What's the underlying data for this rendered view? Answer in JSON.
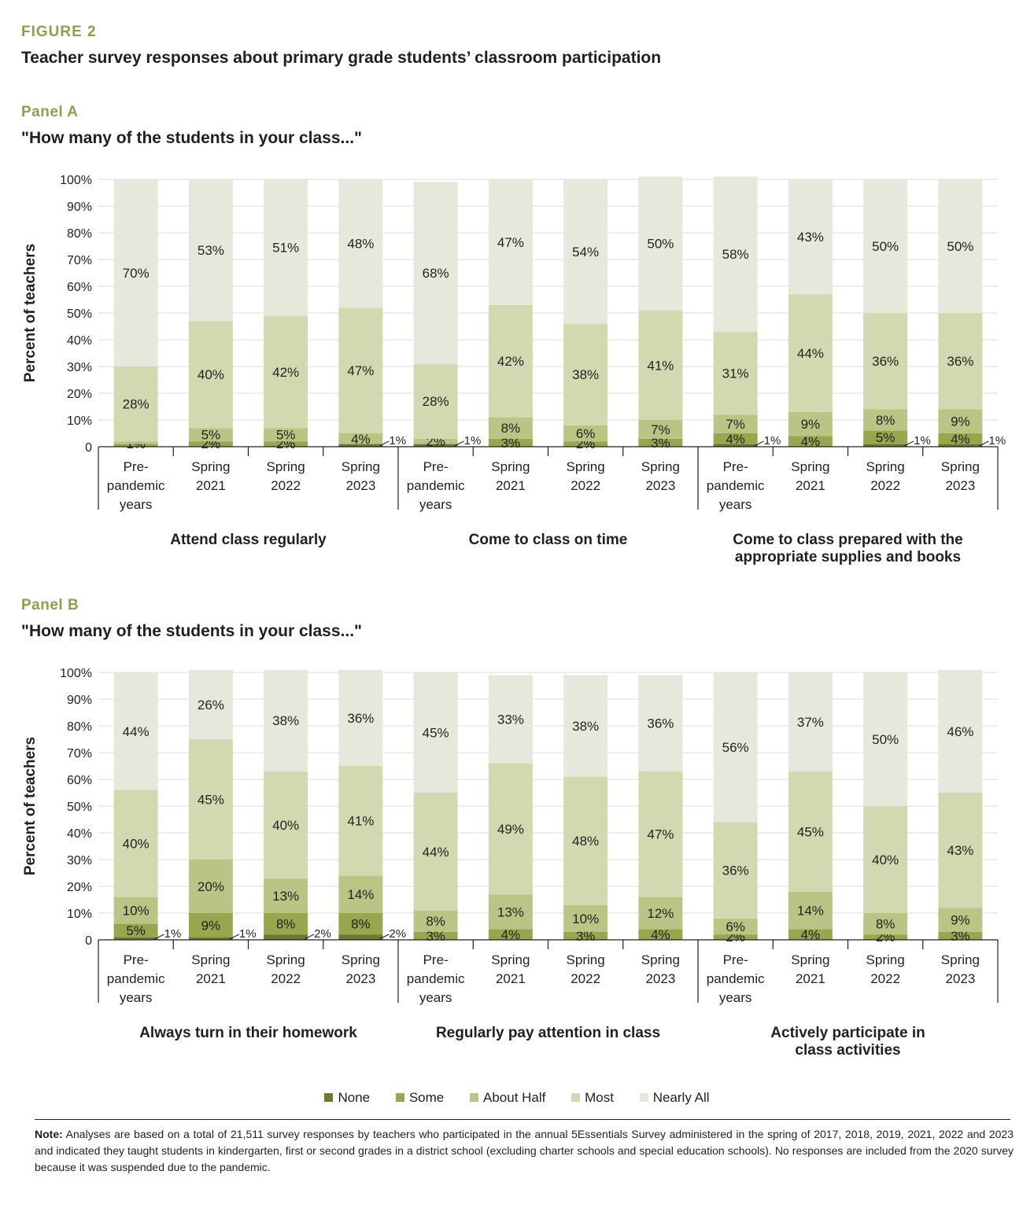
{
  "figure_label": "FIGURE 2",
  "figure_title": "Teacher survey responses about primary grade students’ classroom participation",
  "legend": [
    {
      "name": "None",
      "color": "#6b7a2f"
    },
    {
      "name": "Some",
      "color": "#97a74e"
    },
    {
      "name": "About Half",
      "color": "#b9c585"
    },
    {
      "name": "Most",
      "color": "#d2d9b1"
    },
    {
      "name": "Nearly All",
      "color": "#e6e8dc"
    }
  ],
  "note": {
    "label": "Note:",
    "text": "Analyses are based on a total of 21,511 survey responses by teachers who participated in the annual 5Essentials Survey administered in the spring of 2017, 2018, 2019, 2021, 2022 and 2023 and indicated they taught students in kindergarten, first or second grades in a district school (excluding charter schools and special education schools).  No responses are included from the 2020 survey because it was suspended due to the pandemic."
  },
  "chart_data": [
    {
      "type": "bar",
      "stacked": true,
      "panel_label": "Panel A",
      "question": "\"How many of the students in your class...\"",
      "ylabel": "Percent of teachers",
      "ylim": [
        0,
        100
      ],
      "yticks": [
        "0",
        "10%",
        "20%",
        "30%",
        "40%",
        "50%",
        "60%",
        "70%",
        "80%",
        "90%",
        "100%"
      ],
      "grid": true,
      "series_order": [
        "None",
        "Some",
        "About Half",
        "Most",
        "Nearly All"
      ],
      "groups": [
        {
          "title": [
            "Attend class regularly"
          ],
          "bars": [
            {
              "label": [
                "Pre-",
                "pandemic",
                "years"
              ],
              "values": [
                0,
                1,
                1,
                28,
                70
              ],
              "labels": [
                "",
                "1%",
                "",
                "28%",
                "70%"
              ]
            },
            {
              "label": [
                "Spring",
                "2021"
              ],
              "values": [
                0,
                2,
                5,
                40,
                53
              ],
              "labels": [
                "",
                "2%",
                "5%",
                "40%",
                "53%"
              ]
            },
            {
              "label": [
                "Spring",
                "2022"
              ],
              "values": [
                0,
                2,
                5,
                42,
                51
              ],
              "labels": [
                "",
                "2%",
                "5%",
                "42%",
                "51%"
              ]
            },
            {
              "label": [
                "Spring",
                "2023"
              ],
              "values": [
                1,
                0,
                4,
                47,
                48
              ],
              "labels": [
                "1%",
                "",
                "4%",
                "47%",
                "48%"
              ]
            }
          ]
        },
        {
          "title": [
            "Come to class on time"
          ],
          "bars": [
            {
              "label": [
                "Pre-",
                "pandemic",
                "years"
              ],
              "values": [
                1,
                0,
                2,
                28,
                68
              ],
              "labels": [
                "1%",
                "",
                "2%",
                "28%",
                "68%"
              ]
            },
            {
              "label": [
                "Spring",
                "2021"
              ],
              "values": [
                0,
                3,
                8,
                42,
                47
              ],
              "labels": [
                "",
                "3%",
                "8%",
                "42%",
                "47%"
              ]
            },
            {
              "label": [
                "Spring",
                "2022"
              ],
              "values": [
                0,
                2,
                6,
                38,
                54
              ],
              "labels": [
                "",
                "2%",
                "6%",
                "38%",
                "54%"
              ]
            },
            {
              "label": [
                "Spring",
                "2023"
              ],
              "values": [
                0,
                3,
                7,
                41,
                50
              ],
              "labels": [
                "",
                "3%",
                "7%",
                "41%",
                "50%"
              ]
            }
          ]
        },
        {
          "title": [
            "Come to class prepared with the",
            "appropriate supplies and books"
          ],
          "bars": [
            {
              "label": [
                "Pre-",
                "pandemic",
                "years"
              ],
              "values": [
                1,
                4,
                7,
                31,
                58
              ],
              "labels": [
                "1%",
                "4%",
                "7%",
                "31%",
                "58%"
              ]
            },
            {
              "label": [
                "Spring",
                "2021"
              ],
              "values": [
                0,
                4,
                9,
                44,
                43
              ],
              "labels": [
                "",
                "4%",
                "9%",
                "44%",
                "43%"
              ]
            },
            {
              "label": [
                "Spring",
                "2022"
              ],
              "values": [
                1,
                5,
                8,
                36,
                50
              ],
              "labels": [
                "1%",
                "5%",
                "8%",
                "36%",
                "50%"
              ]
            },
            {
              "label": [
                "Spring",
                "2023"
              ],
              "values": [
                1,
                4,
                9,
                36,
                50
              ],
              "labels": [
                "1%",
                "4%",
                "9%",
                "36%",
                "50%"
              ]
            }
          ]
        }
      ]
    },
    {
      "type": "bar",
      "stacked": true,
      "panel_label": "Panel B",
      "question": "\"How many of the students in your class...\"",
      "ylabel": "Percent of teachers",
      "ylim": [
        0,
        100
      ],
      "yticks": [
        "0",
        "10%",
        "20%",
        "30%",
        "40%",
        "50%",
        "60%",
        "70%",
        "80%",
        "90%",
        "100%"
      ],
      "grid": true,
      "series_order": [
        "None",
        "Some",
        "About Half",
        "Most",
        "Nearly All"
      ],
      "groups": [
        {
          "title": [
            "Always turn in their homework"
          ],
          "bars": [
            {
              "label": [
                "Pre-",
                "pandemic",
                "years"
              ],
              "values": [
                1,
                5,
                10,
                40,
                44
              ],
              "labels": [
                "1%",
                "5%",
                "10%",
                "40%",
                "44%"
              ]
            },
            {
              "label": [
                "Spring",
                "2021"
              ],
              "values": [
                1,
                9,
                20,
                45,
                26
              ],
              "labels": [
                "1%",
                "9%",
                "20%",
                "45%",
                "26%"
              ]
            },
            {
              "label": [
                "Spring",
                "2022"
              ],
              "values": [
                2,
                8,
                13,
                40,
                38
              ],
              "labels": [
                "2%",
                "8%",
                "13%",
                "40%",
                "38%"
              ]
            },
            {
              "label": [
                "Spring",
                "2023"
              ],
              "values": [
                2,
                8,
                14,
                41,
                36
              ],
              "labels": [
                "2%",
                "8%",
                "14%",
                "41%",
                "36%"
              ]
            }
          ]
        },
        {
          "title": [
            "Regularly pay attention in class"
          ],
          "bars": [
            {
              "label": [
                "Pre-",
                "pandemic",
                "years"
              ],
              "values": [
                0,
                3,
                8,
                44,
                45
              ],
              "labels": [
                "",
                "3%",
                "8%",
                "44%",
                "45%"
              ]
            },
            {
              "label": [
                "Spring",
                "2021"
              ],
              "values": [
                0,
                4,
                13,
                49,
                33
              ],
              "labels": [
                "",
                "4%",
                "13%",
                "49%",
                "33%"
              ]
            },
            {
              "label": [
                "Spring",
                "2022"
              ],
              "values": [
                0,
                3,
                10,
                48,
                38
              ],
              "labels": [
                "",
                "3%",
                "10%",
                "48%",
                "38%"
              ]
            },
            {
              "label": [
                "Spring",
                "2023"
              ],
              "values": [
                0,
                4,
                12,
                47,
                36
              ],
              "labels": [
                "",
                "4%",
                "12%",
                "47%",
                "36%"
              ]
            }
          ]
        },
        {
          "title": [
            "Actively participate in",
            "class activities"
          ],
          "bars": [
            {
              "label": [
                "Pre-",
                "pandemic",
                "years"
              ],
              "values": [
                0,
                2,
                6,
                36,
                56
              ],
              "labels": [
                "",
                "2%",
                "6%",
                "36%",
                "56%"
              ]
            },
            {
              "label": [
                "Spring",
                "2021"
              ],
              "values": [
                0,
                4,
                14,
                45,
                37
              ],
              "labels": [
                "",
                "4%",
                "14%",
                "45%",
                "37%"
              ]
            },
            {
              "label": [
                "Spring",
                "2022"
              ],
              "values": [
                0,
                2,
                8,
                40,
                50
              ],
              "labels": [
                "",
                "2%",
                "8%",
                "40%",
                "50%"
              ]
            },
            {
              "label": [
                "Spring",
                "2023"
              ],
              "values": [
                0,
                3,
                9,
                43,
                46
              ],
              "labels": [
                "",
                "3%",
                "9%",
                "43%",
                "46%"
              ]
            }
          ]
        }
      ]
    }
  ]
}
